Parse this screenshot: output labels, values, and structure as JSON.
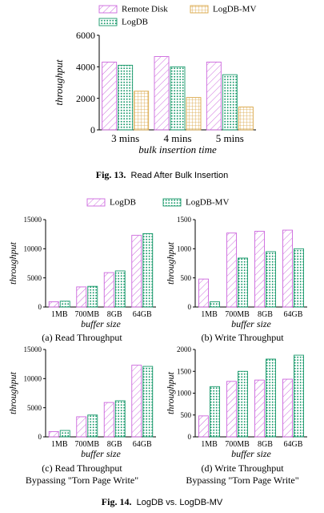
{
  "figure13": {
    "caption_label": "Fig. 13.",
    "caption_text": "Read After Bulk Insertion"
  },
  "figure14": {
    "caption_label": "Fig. 14.",
    "caption_text": "LogDB vs. LogDB-MV",
    "legend": [
      "LogDB",
      "LogDB-MV"
    ],
    "subcaptions": [
      [
        "(a) Read Throughput"
      ],
      [
        "(b) Write Throughput"
      ],
      [
        "(c) Read Throughput",
        "Bypassing \"Torn Page Write\""
      ],
      [
        "(d) Write Throughput",
        "Bypassing \"Torn Page Write\""
      ]
    ]
  },
  "colors": {
    "purple": "#cc66dd",
    "green": "#1a9a6c",
    "orange": "#d9a441"
  },
  "chart_data": [
    {
      "type": "bar",
      "id": "fig13",
      "xlabel": "bulk insertion time",
      "ylabel": "throughput",
      "categories": [
        "3 mins",
        "4 mins",
        "5 mins"
      ],
      "ylim": [
        0,
        6000
      ],
      "yticks": [
        0,
        2000,
        4000,
        6000
      ],
      "legend_placement": "top",
      "series": [
        {
          "name": "Remote Disk",
          "pattern": "hatch",
          "color": "purple",
          "values": [
            4300,
            4650,
            4300
          ]
        },
        {
          "name": "LogDB",
          "pattern": "dots",
          "color": "green",
          "values": [
            4100,
            4000,
            3500
          ]
        },
        {
          "name": "LogDB-MV",
          "pattern": "grid",
          "color": "orange",
          "values": [
            2450,
            2050,
            1450
          ]
        }
      ]
    },
    {
      "type": "bar",
      "id": "fig14a",
      "xlabel": "buffer size",
      "ylabel": "throughput",
      "categories": [
        "1MB",
        "700MB",
        "8GB",
        "64GB"
      ],
      "ylim": [
        0,
        15000
      ],
      "yticks": [
        0,
        5000,
        10000,
        15000
      ],
      "series": [
        {
          "name": "LogDB",
          "pattern": "hatch",
          "color": "purple",
          "values": [
            900,
            3450,
            5900,
            12300
          ]
        },
        {
          "name": "LogDB-MV",
          "pattern": "dots",
          "color": "green",
          "values": [
            1000,
            3550,
            6200,
            12600
          ]
        }
      ]
    },
    {
      "type": "bar",
      "id": "fig14b",
      "xlabel": "buffer size",
      "ylabel": "throughput",
      "categories": [
        "1MB",
        "700MB",
        "8GB",
        "64GB"
      ],
      "ylim": [
        0,
        1500
      ],
      "yticks": [
        0,
        500,
        1000,
        1500
      ],
      "series": [
        {
          "name": "LogDB",
          "pattern": "hatch",
          "color": "purple",
          "values": [
            480,
            1270,
            1300,
            1320
          ]
        },
        {
          "name": "LogDB-MV",
          "pattern": "dots",
          "color": "green",
          "values": [
            90,
            840,
            950,
            1000
          ]
        }
      ]
    },
    {
      "type": "bar",
      "id": "fig14c",
      "xlabel": "buffer size",
      "ylabel": "throughput",
      "categories": [
        "1MB",
        "700MB",
        "8GB",
        "64GB"
      ],
      "ylim": [
        0,
        15000
      ],
      "yticks": [
        0,
        5000,
        10000,
        15000
      ],
      "series": [
        {
          "name": "LogDB",
          "pattern": "hatch",
          "color": "purple",
          "values": [
            900,
            3450,
            5900,
            12300
          ]
        },
        {
          "name": "LogDB-MV",
          "pattern": "dots",
          "color": "green",
          "values": [
            1100,
            3750,
            6200,
            12100
          ]
        }
      ]
    },
    {
      "type": "bar",
      "id": "fig14d",
      "xlabel": "buffer size",
      "ylabel": "throughput",
      "categories": [
        "1MB",
        "700MB",
        "8GB",
        "64GB"
      ],
      "ylim": [
        0,
        2000
      ],
      "yticks": [
        0,
        500,
        1000,
        1500,
        2000
      ],
      "series": [
        {
          "name": "LogDB",
          "pattern": "hatch",
          "color": "purple",
          "values": [
            480,
            1270,
            1300,
            1320
          ]
        },
        {
          "name": "LogDB-MV",
          "pattern": "dots",
          "color": "green",
          "values": [
            1150,
            1500,
            1780,
            1870
          ]
        }
      ]
    }
  ]
}
